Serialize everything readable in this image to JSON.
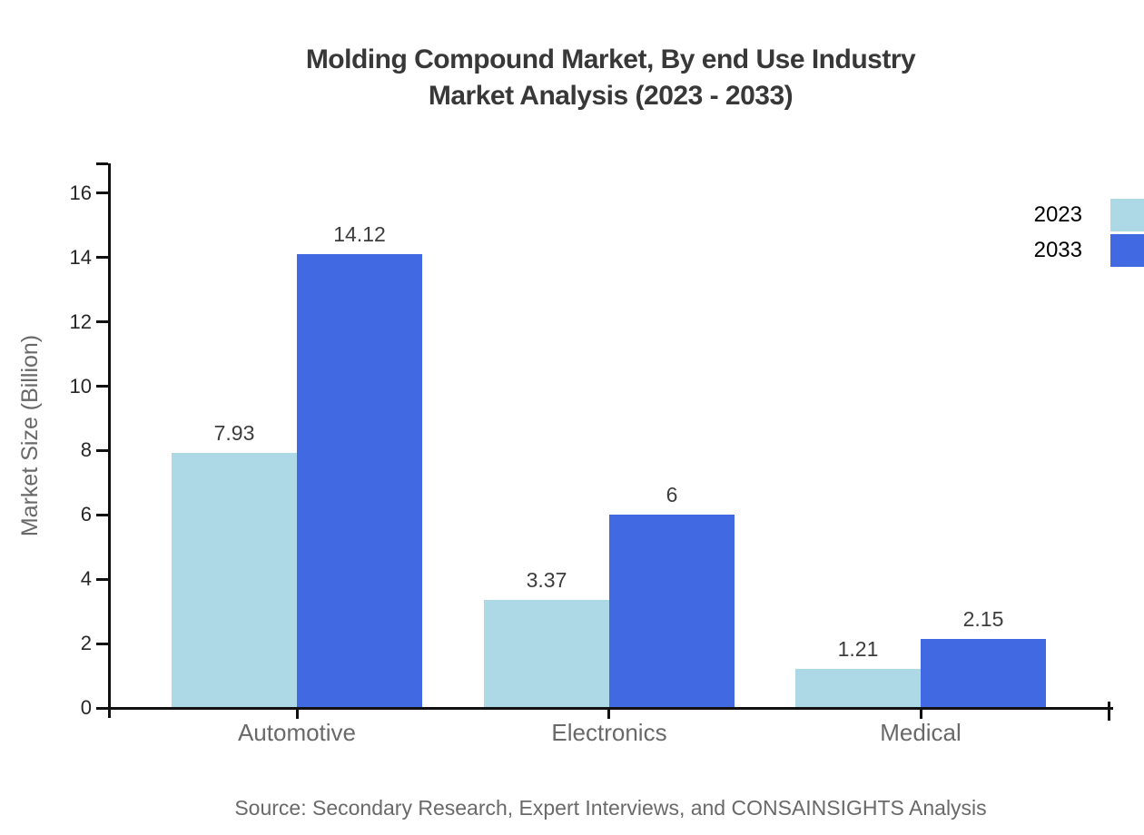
{
  "title": {
    "line1": "Molding Compound Market, By end Use Industry",
    "line2": "Market Analysis (2023 - 2033)"
  },
  "source_note": "Source: Secondary Research, Expert Interviews, and CONSAINSIGHTS Analysis",
  "legend": {
    "items": [
      {
        "label": "2023",
        "color": "#ADD8E6"
      },
      {
        "label": "2033",
        "color": "#4169E1"
      }
    ]
  },
  "chart_data": {
    "type": "bar",
    "title": "Molding Compound Market, By end Use Industry Market Analysis (2023 - 2033)",
    "categories": [
      "Automotive",
      "Electronics",
      "Medical"
    ],
    "series": [
      {
        "name": "2023",
        "color": "#ADD8E6",
        "values": [
          7.93,
          3.37,
          1.21
        ],
        "value_labels": [
          "7.93",
          "3.37",
          "1.21"
        ]
      },
      {
        "name": "2033",
        "color": "#4169E1",
        "values": [
          14.12,
          6,
          2.15
        ],
        "value_labels": [
          "14.12",
          "6",
          "2.15"
        ]
      }
    ],
    "xlabel": "",
    "ylabel": "Market Size (Billion)",
    "ylim": [
      0,
      16
    ],
    "yticks": [
      0,
      2,
      4,
      6,
      8,
      10,
      12,
      14,
      16
    ],
    "grid": false,
    "legend_position": "top-right",
    "colors": {
      "axis": "#111111",
      "tick_label": "#262626",
      "value_label": "#3d3d3d",
      "category_label": "#696969",
      "axis_title": "#696969",
      "title": "#383838",
      "legend_label": "#000000",
      "source": "#696969",
      "background": "#ffffff"
    }
  }
}
